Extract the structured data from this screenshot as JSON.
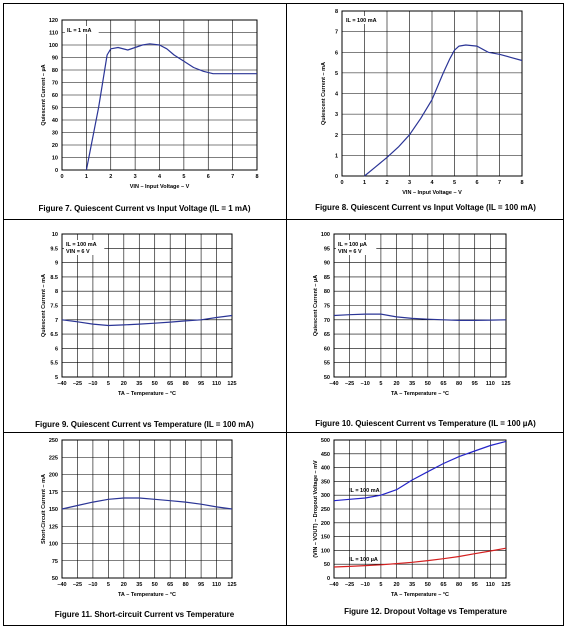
{
  "chart_data": [
    {
      "type": "line",
      "title": "Figure 7. Quiescent Current vs Input Voltage (IL = 1 mA)",
      "xlabel": "VIN – Input Voltage – V",
      "ylabel": "Quiescent Current – µA",
      "xlim": [
        0,
        8
      ],
      "ylim": [
        0,
        120
      ],
      "xticks": [
        "0",
        "1",
        "2",
        "3",
        "4",
        "5",
        "6",
        "7",
        "8"
      ],
      "yticks": [
        "0",
        "10",
        "20",
        "30",
        "40",
        "50",
        "60",
        "70",
        "80",
        "90",
        "100",
        "110",
        "120"
      ],
      "grid": true,
      "annotations": [
        "IL = 1 mA"
      ],
      "series": [
        {
          "color": "#2b3596",
          "x": [
            1,
            1.5,
            1.85,
            2,
            2.3,
            2.7,
            3,
            3.3,
            3.6,
            4,
            4.3,
            4.6,
            5,
            5.4,
            5.8,
            6.2,
            6.6,
            7,
            7.5,
            8
          ],
          "y": [
            0,
            50,
            92,
            97,
            98,
            96,
            98,
            100,
            101,
            100,
            97,
            92,
            87,
            82,
            79,
            77,
            77,
            77,
            77,
            77
          ]
        }
      ]
    },
    {
      "type": "line",
      "title": "Figure 8. Quiescent Current vs Input Voltage (IL = 100 mA)",
      "xlabel": "VIN – Input Voltage – V",
      "ylabel": "Quiescent Current – mA",
      "xlim": [
        0,
        8
      ],
      "ylim": [
        0,
        8
      ],
      "xticks": [
        "0",
        "1",
        "2",
        "3",
        "4",
        "5",
        "6",
        "7",
        "8"
      ],
      "yticks": [
        "0",
        "1",
        "2",
        "3",
        "4",
        "5",
        "6",
        "7",
        "8"
      ],
      "grid": true,
      "annotations": [
        "IL = 100 mA"
      ],
      "series": [
        {
          "color": "#2b3596",
          "x": [
            1,
            1.5,
            2,
            2.5,
            3,
            3.5,
            4,
            4.5,
            4.8,
            5,
            5.2,
            5.5,
            6,
            6.5,
            7,
            7.5,
            8
          ],
          "y": [
            0,
            0.45,
            0.9,
            1.4,
            2,
            2.8,
            3.7,
            5,
            5.7,
            6.1,
            6.3,
            6.35,
            6.3,
            6,
            5.9,
            5.75,
            5.6
          ]
        }
      ]
    },
    {
      "type": "line",
      "title": "Figure 9. Quiescent Current vs Temperature (IL = 100 mA)",
      "xlabel": "TA – Temperature – °C",
      "ylabel": "Quiescent Current – mA",
      "xlim": [
        -40,
        125
      ],
      "ylim": [
        5,
        10
      ],
      "xticks": [
        "-40",
        "-25",
        "-10",
        "5",
        "20",
        "35",
        "50",
        "65",
        "80",
        "95",
        "110",
        "125"
      ],
      "yticks": [
        "5",
        "5.5",
        "6",
        "6.5",
        "7",
        "7.5",
        "8",
        "8.5",
        "9",
        "9.5",
        "10"
      ],
      "grid": true,
      "annotations": [
        "IL = 100 mA",
        "VIN = 6 V"
      ],
      "series": [
        {
          "color": "#2b3596",
          "x": [
            -40,
            -25,
            -10,
            5,
            20,
            35,
            50,
            65,
            80,
            95,
            110,
            125
          ],
          "y": [
            7,
            6.93,
            6.85,
            6.8,
            6.82,
            6.85,
            6.88,
            6.92,
            6.96,
            7,
            7.08,
            7.15
          ]
        }
      ]
    },
    {
      "type": "line",
      "title": "Figure 10. Quiescent Current vs Temperature (IL = 100 µA)",
      "xlabel": "TA – Temperature – °C",
      "ylabel": "Quiescent Current – µA",
      "xlim": [
        -40,
        125
      ],
      "ylim": [
        50,
        100
      ],
      "xticks": [
        "-40",
        "-25",
        "-10",
        "5",
        "20",
        "35",
        "50",
        "65",
        "80",
        "95",
        "110",
        "125"
      ],
      "yticks": [
        "50",
        "55",
        "60",
        "65",
        "70",
        "75",
        "80",
        "85",
        "90",
        "95",
        "100"
      ],
      "grid": true,
      "annotations": [
        "IL = 100 µA",
        "VIN = 6 V"
      ],
      "series": [
        {
          "color": "#2b3596",
          "x": [
            -40,
            -25,
            -10,
            5,
            20,
            35,
            50,
            65,
            80,
            95,
            110,
            125
          ],
          "y": [
            71.5,
            71.8,
            72,
            72,
            71,
            70.5,
            70.2,
            70,
            69.8,
            69.8,
            69.9,
            70
          ]
        }
      ]
    },
    {
      "type": "line",
      "title": "Figure 11. Short-circuit Current vs Temperature",
      "xlabel": "TA – Temperature – °C",
      "ylabel": "Short-Circuit Current – mA",
      "xlim": [
        -40,
        125
      ],
      "ylim": [
        50,
        250
      ],
      "xticks": [
        "-40",
        "-25",
        "-10",
        "5",
        "20",
        "35",
        "50",
        "65",
        "80",
        "95",
        "110",
        "125"
      ],
      "yticks": [
        "50",
        "75",
        "100",
        "125",
        "150",
        "175",
        "200",
        "225",
        "250"
      ],
      "grid": true,
      "annotations": [],
      "series": [
        {
          "color": "#2b3596",
          "x": [
            -40,
            -25,
            -10,
            5,
            20,
            35,
            50,
            65,
            80,
            95,
            110,
            125
          ],
          "y": [
            150,
            155,
            160,
            164,
            166,
            166,
            164,
            162,
            160,
            157,
            153,
            150
          ]
        }
      ]
    },
    {
      "type": "line",
      "title": "Figure 12. Dropout Voltage vs Temperature",
      "xlabel": "TA – Temperature – °C",
      "ylabel": "(VIN – VOUT) – Dropout Voltage – mV",
      "xlim": [
        -40,
        125
      ],
      "ylim": [
        0,
        500
      ],
      "xticks": [
        "-40",
        "-25",
        "-10",
        "5",
        "20",
        "35",
        "50",
        "65",
        "80",
        "95",
        "110",
        "125"
      ],
      "yticks": [
        "0",
        "50",
        "100",
        "150",
        "200",
        "250",
        "300",
        "350",
        "400",
        "450",
        "500"
      ],
      "grid": true,
      "annotations": [
        "IL = 100 mA",
        "IL = 100 µA"
      ],
      "series": [
        {
          "color": "#2424c8",
          "x": [
            -40,
            -25,
            -10,
            5,
            20,
            35,
            50,
            65,
            80,
            95,
            110,
            125
          ],
          "y": [
            280,
            285,
            290,
            300,
            320,
            355,
            385,
            415,
            440,
            460,
            480,
            495
          ]
        },
        {
          "color": "#d42020",
          "x": [
            -40,
            -25,
            -10,
            5,
            20,
            35,
            50,
            65,
            80,
            95,
            110,
            125
          ],
          "y": [
            40,
            42,
            45,
            48,
            52,
            57,
            63,
            70,
            78,
            88,
            98,
            108
          ]
        }
      ]
    }
  ]
}
